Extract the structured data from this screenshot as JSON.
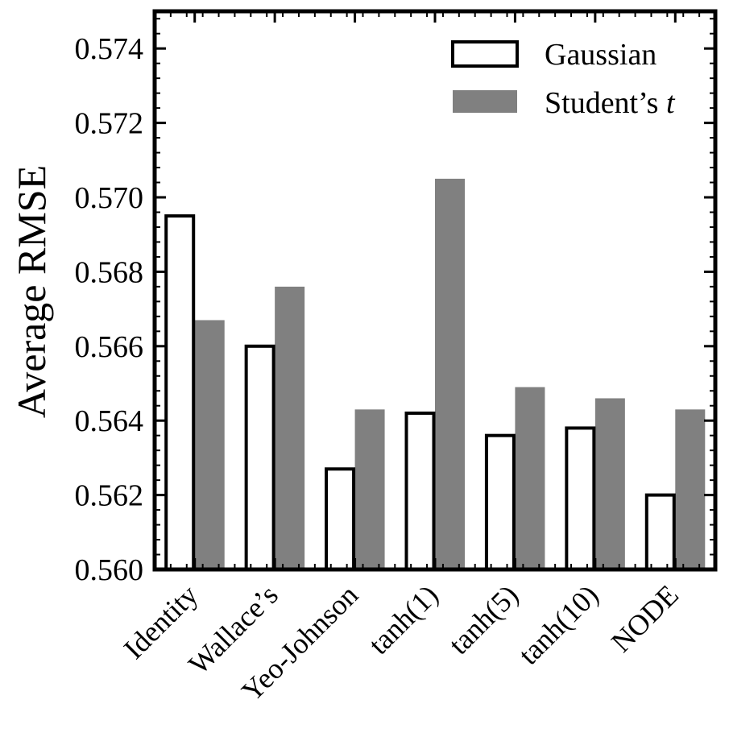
{
  "chart_data": {
    "type": "bar",
    "title": "",
    "xlabel": "",
    "ylabel": "Average RMSE",
    "ylim": [
      0.56,
      0.575
    ],
    "yticks": [
      "0.560",
      "0.562",
      "0.564",
      "0.566",
      "0.568",
      "0.570",
      "0.572",
      "0.574"
    ],
    "categories": [
      "Identity",
      "Wallace’s",
      "Yeo-Johnson",
      "tanh(1)",
      "tanh(5)",
      "tanh(10)",
      "NODE"
    ],
    "series": [
      {
        "name": "Gaussian",
        "style": "outline",
        "fill": "#ffffff",
        "stroke": "#000000",
        "values": [
          0.5695,
          0.566,
          0.5627,
          0.5642,
          0.5636,
          0.5638,
          0.562
        ]
      },
      {
        "name": "Student’s",
        "name_italic_suffix": "t",
        "style": "filled",
        "fill": "#808080",
        "stroke": "none",
        "values": [
          0.5667,
          0.5676,
          0.5643,
          0.5705,
          0.5649,
          0.5646,
          0.5643
        ]
      }
    ],
    "legend_position": "top-right",
    "grid": false
  }
}
